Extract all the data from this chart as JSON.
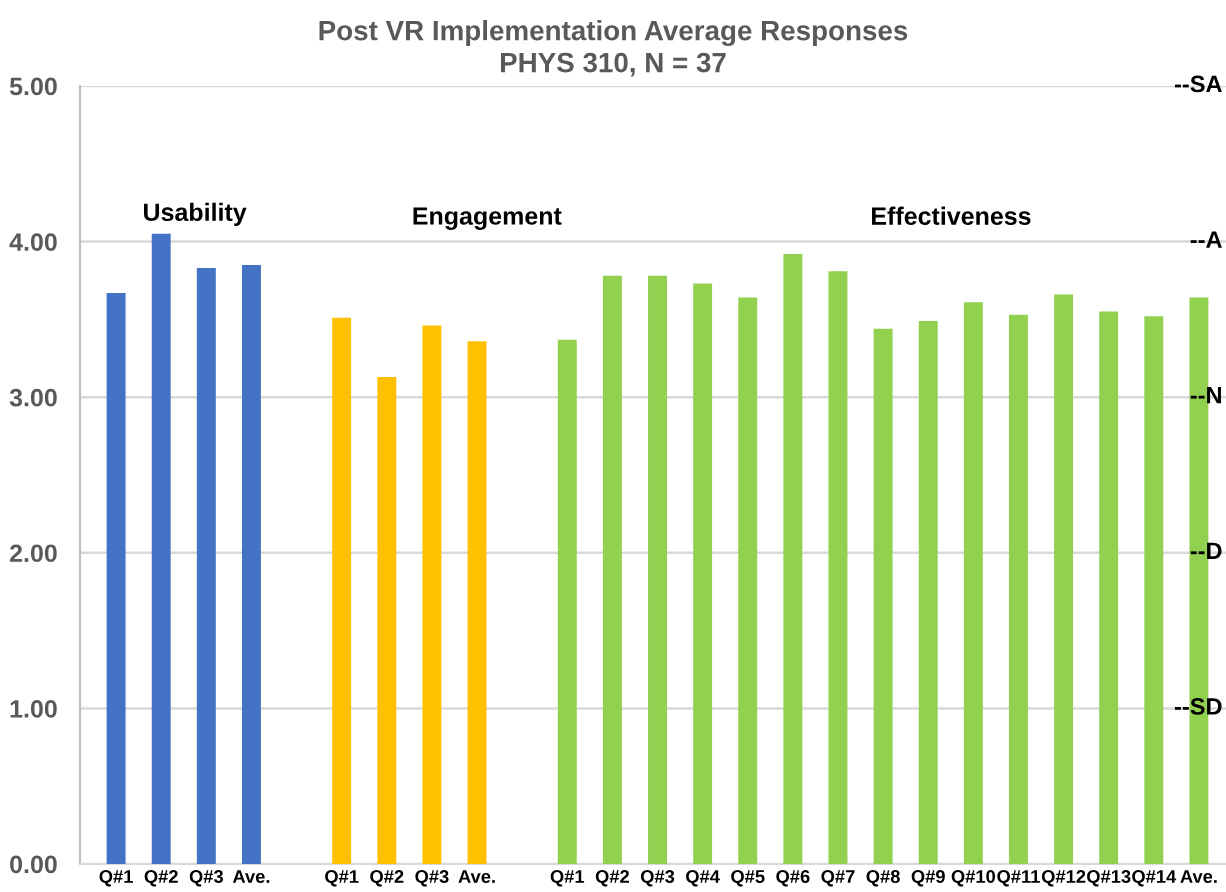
{
  "chart_data": {
    "type": "bar",
    "title": "Post VR Implementation Average Responses",
    "subtitle": "PHYS 310, N = 37",
    "categories": [
      "Q#1",
      "Q#2",
      "Q#3",
      "Ave.",
      null,
      "Q#1",
      "Q#2",
      "Q#3",
      "Ave.",
      null,
      "Q#1",
      "Q#2",
      "Q#3",
      "Q#4",
      "Q#5",
      "Q#6",
      "Q#7",
      "Q#8",
      "Q#9",
      "Q#10",
      "Q#11",
      "Q#12",
      "Q#13",
      "Q#14",
      "Ave."
    ],
    "values": [
      3.67,
      4.05,
      3.83,
      3.85,
      null,
      3.51,
      3.13,
      3.46,
      3.36,
      null,
      3.37,
      3.78,
      3.78,
      3.73,
      3.64,
      3.92,
      3.81,
      3.44,
      3.49,
      3.61,
      3.53,
      3.66,
      3.55,
      3.52,
      3.64
    ],
    "colors": [
      "#4472c4",
      "#4472c4",
      "#4472c4",
      "#4472c4",
      null,
      "#ffc000",
      "#ffc000",
      "#ffc000",
      "#ffc000",
      null,
      "#92d050",
      "#92d050",
      "#92d050",
      "#92d050",
      "#92d050",
      "#92d050",
      "#92d050",
      "#92d050",
      "#92d050",
      "#92d050",
      "#92d050",
      "#92d050",
      "#92d050",
      "#92d050",
      "#92d050"
    ],
    "ylim": [
      0,
      5
    ],
    "yticks": [
      {
        "value": 0,
        "label": "0.00"
      },
      {
        "value": 1,
        "label": "1.00"
      },
      {
        "value": 2,
        "label": "2.00"
      },
      {
        "value": 3,
        "label": "3.00"
      },
      {
        "value": 4,
        "label": "4.00"
      },
      {
        "value": 5,
        "label": "5.00"
      }
    ],
    "grid": "y",
    "annotations": [
      "Usability",
      "Engagement",
      "Effectiveness",
      "--SA",
      "--A",
      "--N",
      "--D",
      "--SD"
    ]
  }
}
